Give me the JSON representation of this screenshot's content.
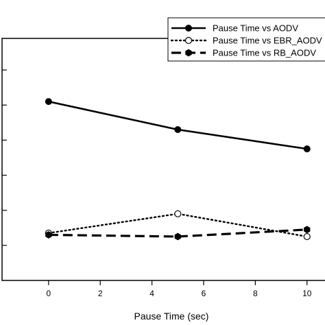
{
  "chart_data": {
    "type": "line",
    "title": "",
    "xlabel": "Pause Time (sec)",
    "ylabel": "",
    "x": [
      0,
      5,
      10
    ],
    "xlim": [
      -1.8,
      11.2
    ],
    "xticks": [
      0,
      2,
      4,
      6,
      8,
      10
    ],
    "ylim": [
      0,
      6.9
    ],
    "yticks": [
      1,
      2,
      3,
      4,
      5,
      6
    ],
    "grid": false,
    "legend": "top-right",
    "series": [
      {
        "name": "Pause Time vs AODV",
        "values": [
          5.1,
          4.3,
          3.75
        ],
        "style": "solid",
        "marker": "filled-circle",
        "color": "#000000"
      },
      {
        "name": "Pause Time vs EBR_AODV",
        "values": [
          1.35,
          1.9,
          1.25
        ],
        "style": "dotted",
        "marker": "open-circle",
        "color": "#000000"
      },
      {
        "name": "Pause Time vs RB_AODV",
        "values": [
          1.3,
          1.25,
          1.45
        ],
        "style": "dashed",
        "marker": "filled-hexagon",
        "color": "#000000"
      }
    ]
  }
}
